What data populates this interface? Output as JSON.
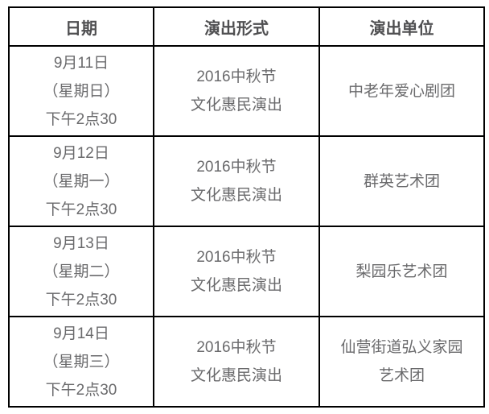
{
  "colors": {
    "border": "#000000",
    "header_text": "#4f4f51",
    "body_text": "#6a6a6c",
    "background": "#ffffff"
  },
  "table": {
    "headers": {
      "date": "日期",
      "format": "演出形式",
      "unit": "演出单位"
    },
    "rows": [
      {
        "date": [
          "9月11日",
          "（星期日）",
          "下午2点30"
        ],
        "format": [
          "2016中秋节",
          "文化惠民演出"
        ],
        "unit": [
          "中老年爱心剧团"
        ]
      },
      {
        "date": [
          "9月12日",
          "（星期一）",
          "下午2点30"
        ],
        "format": [
          "2016中秋节",
          "文化惠民演出"
        ],
        "unit": [
          "群英艺术团"
        ]
      },
      {
        "date": [
          "9月13日",
          "（星期二）",
          "下午2点30"
        ],
        "format": [
          "2016中秋节",
          "文化惠民演出"
        ],
        "unit": [
          "梨园乐艺术团"
        ]
      },
      {
        "date": [
          "9月14日",
          "（星期三）",
          "下午2点30"
        ],
        "format": [
          "2016中秋节",
          "文化惠民演出"
        ],
        "unit": [
          "仙营街道弘义家园",
          "艺术团"
        ]
      }
    ]
  }
}
